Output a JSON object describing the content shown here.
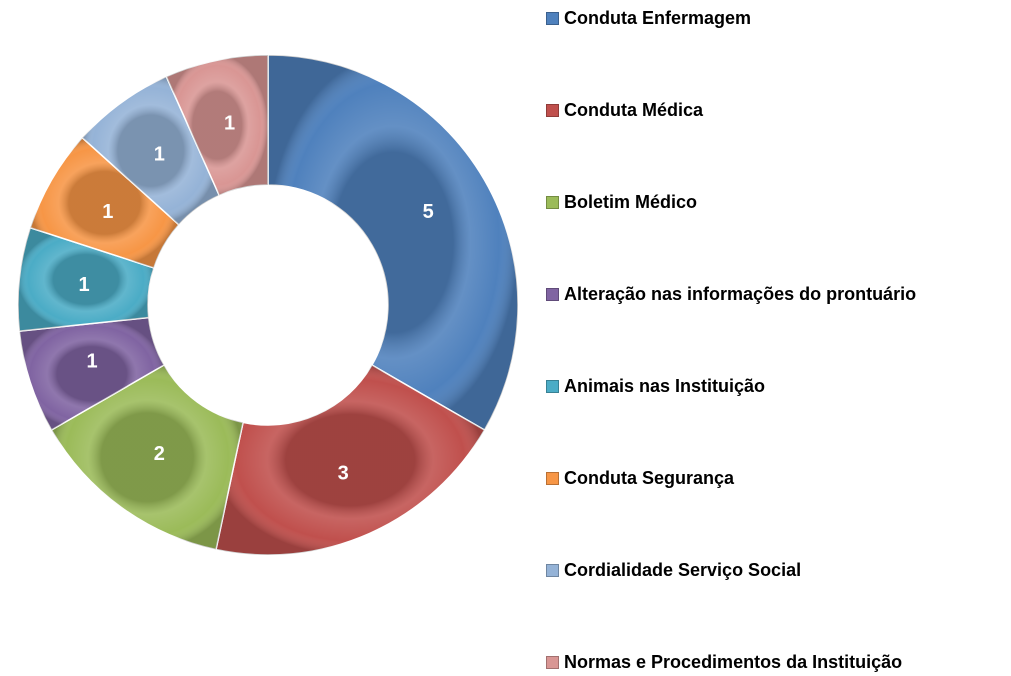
{
  "chart_data": {
    "type": "donut",
    "categories": [
      "Conduta Enfermagem",
      "Conduta Médica",
      "Boletim Médico",
      "Alteração nas informações do prontuário",
      "Animais nas Instituição",
      "Conduta Segurança",
      "Cordialidade Serviço Social",
      "Normas e Procedimentos da Instituição"
    ],
    "values": [
      5,
      3,
      2,
      1,
      1,
      1,
      1,
      1
    ],
    "colors": [
      "#4F81BD",
      "#C0504D",
      "#9BBB59",
      "#8064A2",
      "#4BACC6",
      "#F79646",
      "#95B3D7",
      "#D99694"
    ],
    "legend": "right"
  }
}
